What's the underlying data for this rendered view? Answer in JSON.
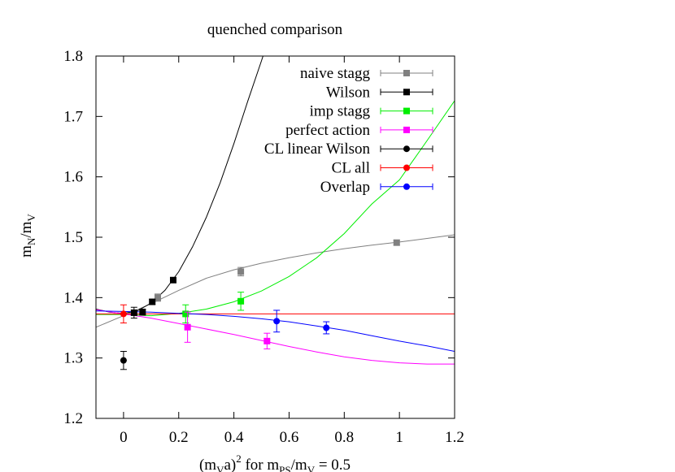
{
  "chart_data": {
    "type": "scatter",
    "title": "quenched comparison",
    "xlabel": {
      "base": "(m",
      "sub1": "V",
      "mid": "a)",
      "sup": "2",
      "rest": " for m",
      "sub2": "PS",
      "rest2": "/m",
      "sub3": "V",
      "tail": " = 0.5"
    },
    "ylabel": {
      "base": "m",
      "sub1": "N",
      "mid": "/m",
      "sub2": "V"
    },
    "xlim": [
      -0.1,
      1.2
    ],
    "ylim": [
      1.2,
      1.8
    ],
    "xticks": [
      "0",
      "0.2",
      "0.4",
      "0.6",
      "0.8",
      "1",
      "1.2"
    ],
    "yticks": [
      "1.2",
      "1.3",
      "1.4",
      "1.5",
      "1.6",
      "1.7",
      "1.8"
    ],
    "grid": false,
    "legend_position": "top-right",
    "series": [
      {
        "name": "naive stagg",
        "color": "#808080",
        "marker": "square",
        "points": [
          {
            "x": 0.124,
            "y": 1.4,
            "err": 0.006
          },
          {
            "x": 0.425,
            "y": 1.443,
            "err": 0.007
          },
          {
            "x": 0.99,
            "y": 1.491,
            "err": 0.004
          }
        ],
        "fit": [
          [
            -0.1,
            1.351
          ],
          [
            0.0,
            1.37
          ],
          [
            0.1,
            1.39
          ],
          [
            0.2,
            1.412
          ],
          [
            0.3,
            1.432
          ],
          [
            0.4,
            1.446
          ],
          [
            0.5,
            1.457
          ],
          [
            0.6,
            1.466
          ],
          [
            0.7,
            1.474
          ],
          [
            0.8,
            1.481
          ],
          [
            0.9,
            1.487
          ],
          [
            1.0,
            1.492
          ],
          [
            1.1,
            1.498
          ],
          [
            1.2,
            1.504
          ]
        ]
      },
      {
        "name": "Wilson",
        "color": "#000000",
        "marker": "square",
        "points": [
          {
            "x": 0.038,
            "y": 1.375,
            "err": 0.009
          },
          {
            "x": 0.069,
            "y": 1.376,
            "err": 0.005
          },
          {
            "x": 0.104,
            "y": 1.393,
            "err": 0.004
          },
          {
            "x": 0.18,
            "y": 1.429,
            "err": 0.004
          }
        ],
        "fit": [
          [
            -0.1,
            1.381
          ],
          [
            -0.05,
            1.376
          ],
          [
            0.0,
            1.374
          ],
          [
            0.05,
            1.378
          ],
          [
            0.1,
            1.391
          ],
          [
            0.15,
            1.412
          ],
          [
            0.2,
            1.443
          ],
          [
            0.25,
            1.484
          ],
          [
            0.3,
            1.533
          ],
          [
            0.35,
            1.59
          ],
          [
            0.4,
            1.655
          ],
          [
            0.45,
            1.725
          ],
          [
            0.5,
            1.792
          ],
          [
            0.52,
            1.82
          ]
        ]
      },
      {
        "name": "imp stagg",
        "color": "#00ee00",
        "marker": "square",
        "points": [
          {
            "x": 0.225,
            "y": 1.373,
            "err": 0.015
          },
          {
            "x": 0.425,
            "y": 1.394,
            "err": 0.015
          }
        ],
        "fit": [
          [
            -0.1,
            1.372
          ],
          [
            0.0,
            1.372
          ],
          [
            0.1,
            1.37
          ],
          [
            0.2,
            1.374
          ],
          [
            0.3,
            1.381
          ],
          [
            0.4,
            1.393
          ],
          [
            0.5,
            1.411
          ],
          [
            0.6,
            1.435
          ],
          [
            0.7,
            1.466
          ],
          [
            0.8,
            1.506
          ],
          [
            0.9,
            1.555
          ],
          [
            1.0,
            1.595
          ],
          [
            1.1,
            1.66
          ],
          [
            1.2,
            1.726
          ]
        ]
      },
      {
        "name": "perfect action",
        "color": "#ff00ff",
        "marker": "square",
        "points": [
          {
            "x": 0.232,
            "y": 1.351,
            "err": 0.025
          },
          {
            "x": 0.52,
            "y": 1.328,
            "err": 0.013
          }
        ],
        "fit": [
          [
            -0.1,
            1.38
          ],
          [
            0.0,
            1.373
          ],
          [
            0.1,
            1.366
          ],
          [
            0.2,
            1.357
          ],
          [
            0.3,
            1.348
          ],
          [
            0.4,
            1.339
          ],
          [
            0.5,
            1.329
          ],
          [
            0.6,
            1.319
          ],
          [
            0.7,
            1.31
          ],
          [
            0.8,
            1.302
          ],
          [
            0.9,
            1.296
          ],
          [
            1.0,
            1.292
          ],
          [
            1.1,
            1.29
          ],
          [
            1.2,
            1.29
          ]
        ]
      },
      {
        "name": "CL linear Wilson",
        "color": "#000000",
        "marker": "circle",
        "points": [
          {
            "x": 0.0,
            "y": 1.296,
            "err": 0.015
          }
        ],
        "fit": []
      },
      {
        "name": "CL all",
        "color": "#ff0000",
        "marker": "circle",
        "points": [
          {
            "x": 0.0,
            "y": 1.373,
            "err": 0.015
          }
        ],
        "fit": [
          [
            -0.1,
            1.373
          ],
          [
            1.2,
            1.373
          ]
        ]
      },
      {
        "name": "Overlap",
        "color": "#0000ff",
        "marker": "circle",
        "points": [
          {
            "x": 0.555,
            "y": 1.361,
            "err": 0.018
          },
          {
            "x": 0.735,
            "y": 1.35,
            "err": 0.01
          }
        ],
        "fit": [
          [
            -0.1,
            1.378
          ],
          [
            0.0,
            1.377
          ],
          [
            0.1,
            1.376
          ],
          [
            0.2,
            1.374
          ],
          [
            0.3,
            1.372
          ],
          [
            0.4,
            1.369
          ],
          [
            0.5,
            1.365
          ],
          [
            0.6,
            1.36
          ],
          [
            0.7,
            1.353
          ],
          [
            0.8,
            1.346
          ],
          [
            0.9,
            1.337
          ],
          [
            1.0,
            1.328
          ],
          [
            1.1,
            1.32
          ],
          [
            1.2,
            1.311
          ]
        ]
      }
    ]
  }
}
